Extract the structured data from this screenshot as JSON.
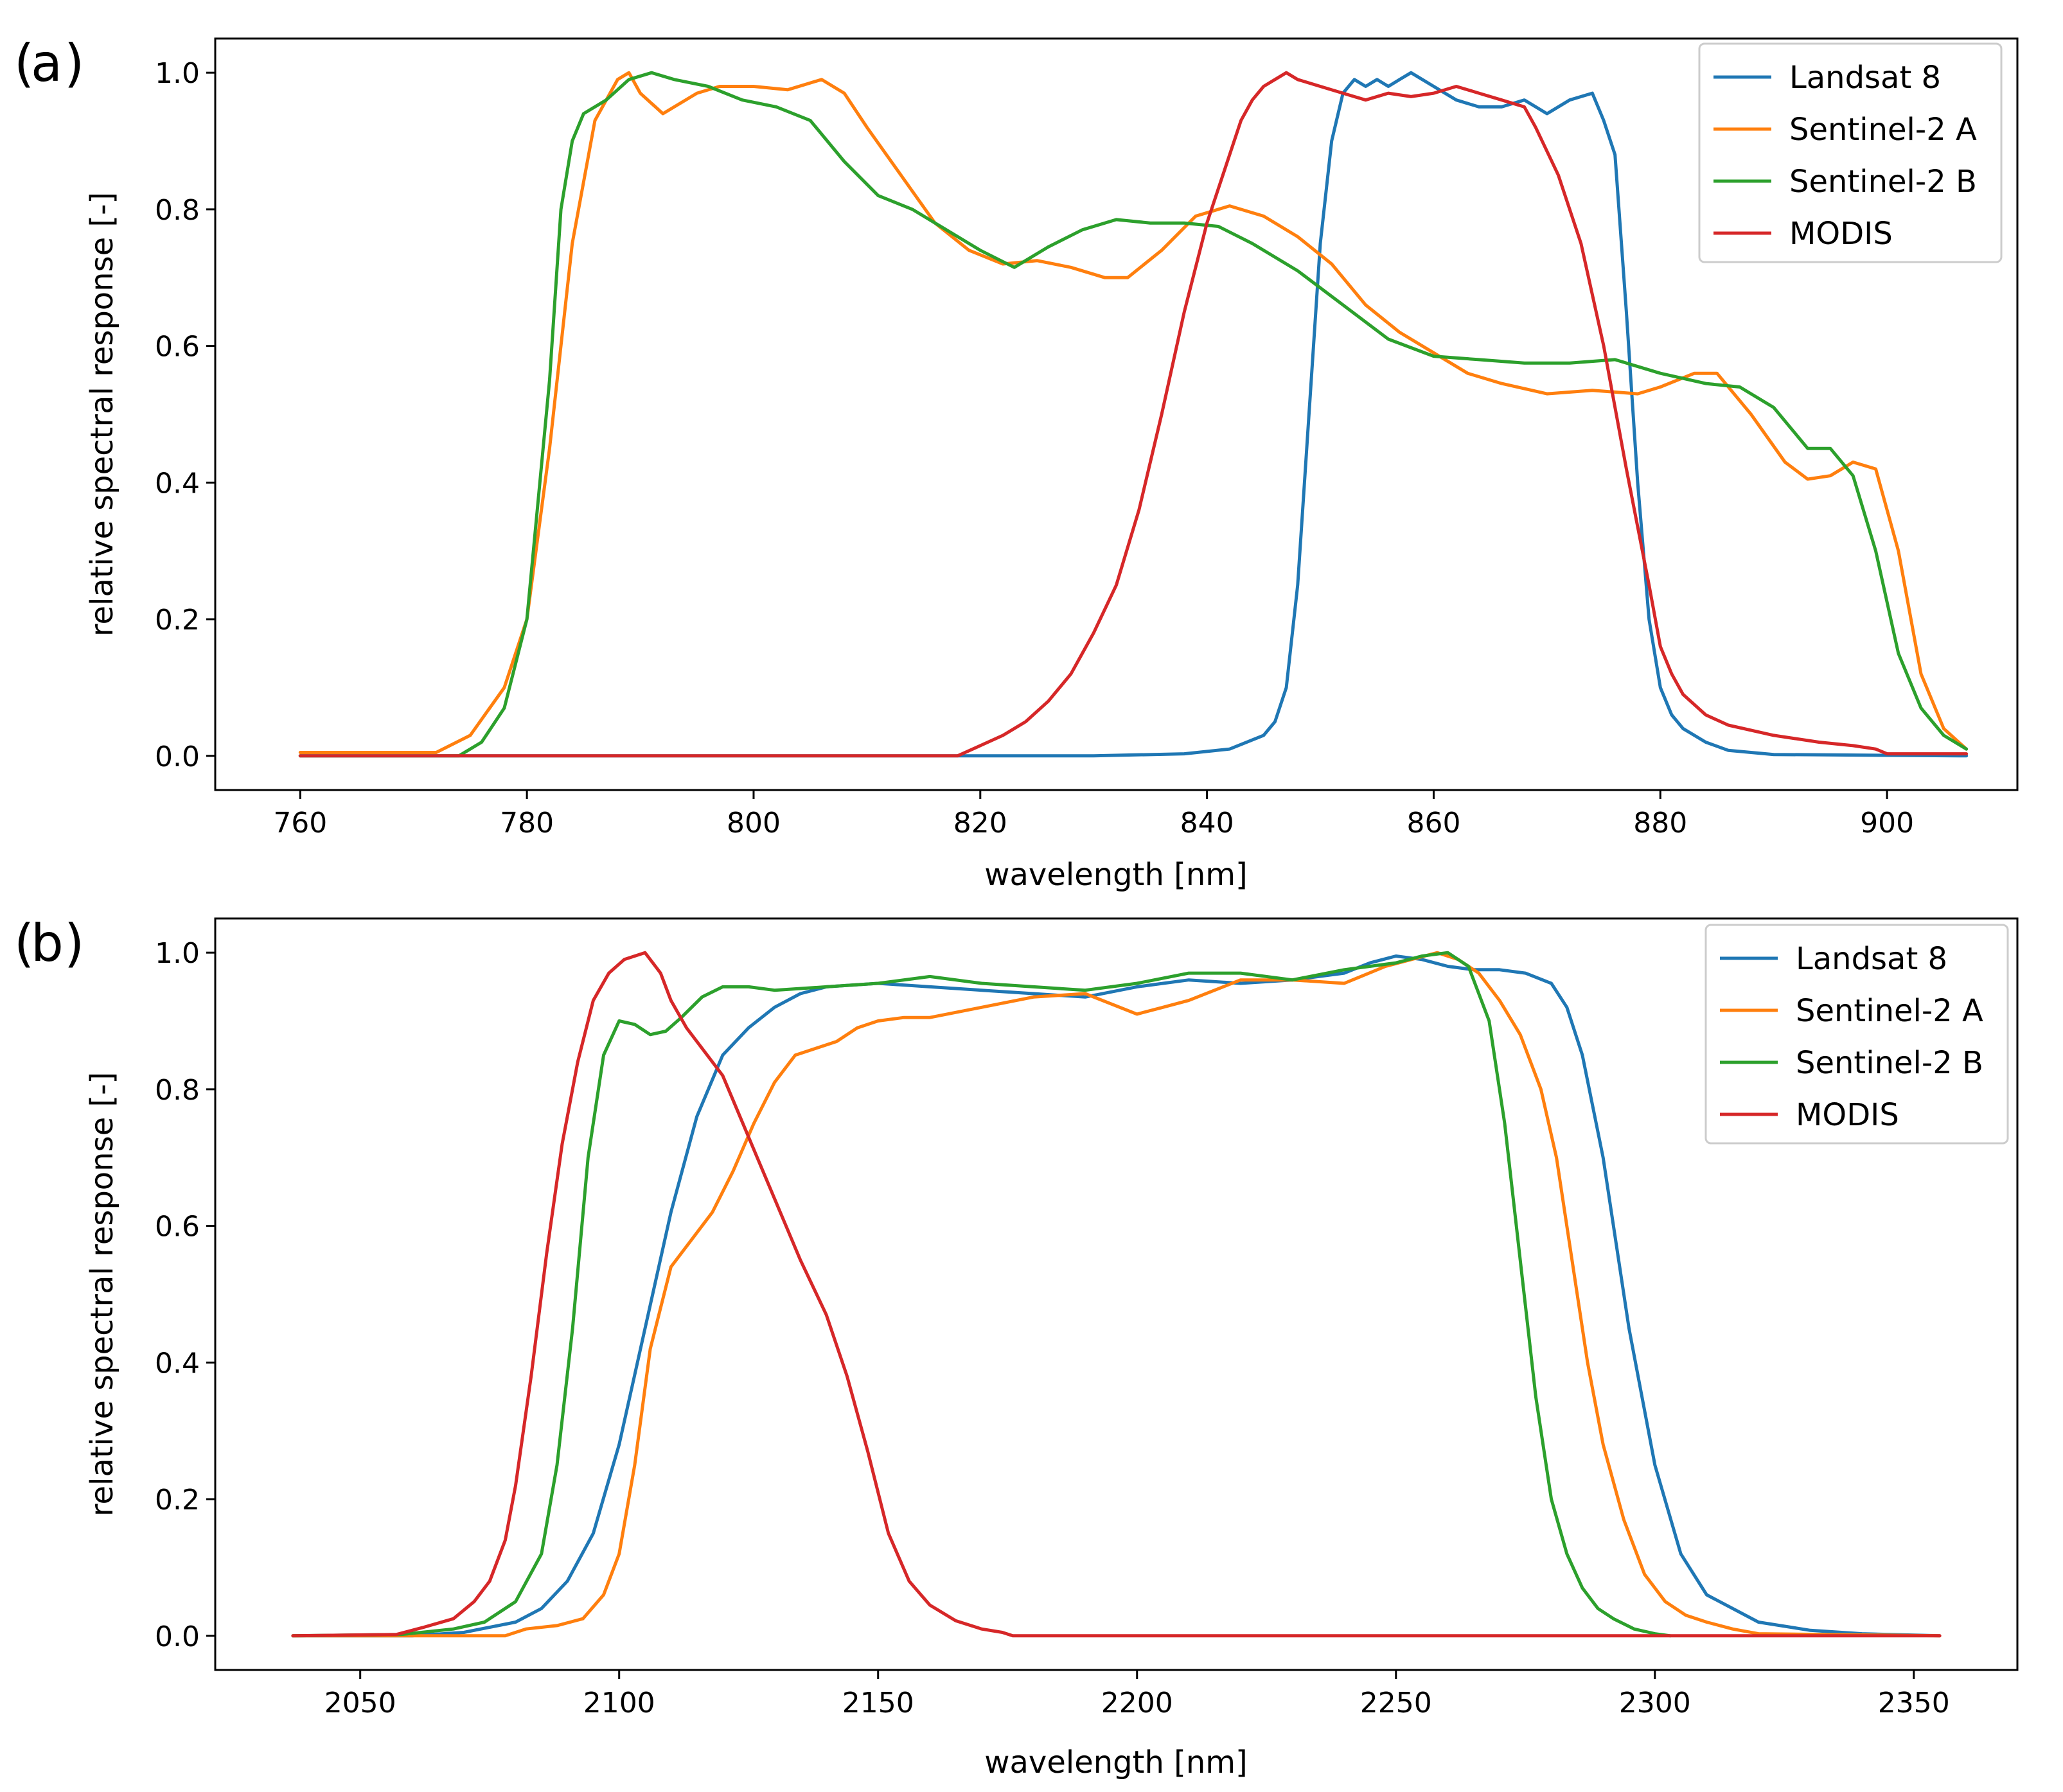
{
  "chart_data": [
    {
      "type": "line",
      "panel_label": "a",
      "xlabel": "wavelength [nm]",
      "ylabel": "relative spectral response [-]",
      "xlim": [
        752.5,
        911.5
      ],
      "ylim": [
        -0.05,
        1.05
      ],
      "xticks": [
        760,
        780,
        800,
        820,
        840,
        860,
        880,
        900
      ],
      "xtick_labels": [
        "760",
        "780",
        "800",
        "820",
        "840",
        "860",
        "880",
        "900"
      ],
      "yticks": [
        0.0,
        0.2,
        0.4,
        0.6,
        0.8,
        1.0
      ],
      "ytick_labels": [
        "0.0",
        "0.2",
        "0.4",
        "0.6",
        "0.8",
        "1.0"
      ],
      "legend_position": "top-right",
      "series": [
        {
          "name": "Landsat 8",
          "color": "#1f77b4",
          "x": [
            760,
            800,
            830,
            838,
            842,
            845,
            846,
            847,
            848,
            849,
            850,
            851,
            852,
            853,
            854,
            855,
            856,
            857,
            858,
            859,
            860,
            862,
            864,
            866,
            868,
            870,
            872,
            874,
            875,
            876,
            877,
            878,
            879,
            880,
            881,
            882,
            884,
            886,
            890,
            907
          ],
          "y": [
            0,
            0,
            0,
            0.003,
            0.01,
            0.03,
            0.05,
            0.1,
            0.25,
            0.5,
            0.75,
            0.9,
            0.97,
            0.99,
            0.98,
            0.99,
            0.98,
            0.99,
            1.0,
            0.99,
            0.98,
            0.96,
            0.95,
            0.95,
            0.96,
            0.94,
            0.96,
            0.97,
            0.93,
            0.88,
            0.65,
            0.4,
            0.2,
            0.1,
            0.06,
            0.04,
            0.02,
            0.008,
            0.002,
            0
          ]
        },
        {
          "name": "Sentinel-2 A",
          "color": "#ff7f0e",
          "x": [
            760,
            772,
            775,
            778,
            780,
            782,
            784,
            786,
            788,
            789,
            790,
            792,
            795,
            797,
            800,
            803,
            806,
            808,
            810,
            813,
            816,
            819,
            822,
            825,
            828,
            831,
            833,
            836,
            839,
            842,
            845,
            848,
            851,
            854,
            857,
            860,
            863,
            866,
            870,
            874,
            878,
            880,
            883,
            885,
            888,
            891,
            893,
            895,
            897,
            899,
            901,
            903,
            905,
            907
          ],
          "y": [
            0.005,
            0.005,
            0.03,
            0.1,
            0.2,
            0.45,
            0.75,
            0.93,
            0.99,
            1.0,
            0.97,
            0.94,
            0.97,
            0.98,
            0.98,
            0.975,
            0.99,
            0.97,
            0.92,
            0.85,
            0.78,
            0.74,
            0.72,
            0.725,
            0.715,
            0.7,
            0.7,
            0.74,
            0.79,
            0.805,
            0.79,
            0.76,
            0.72,
            0.66,
            0.62,
            0.59,
            0.56,
            0.545,
            0.53,
            0.535,
            0.53,
            0.54,
            0.56,
            0.56,
            0.5,
            0.43,
            0.405,
            0.41,
            0.43,
            0.42,
            0.3,
            0.12,
            0.04,
            0.01
          ]
        },
        {
          "name": "Sentinel-2 B",
          "color": "#2ca02c",
          "x": [
            760,
            774,
            776,
            778,
            780,
            782,
            783,
            784,
            785,
            787,
            789,
            791,
            793,
            796,
            799,
            802,
            805,
            808,
            811,
            814,
            817,
            820,
            823,
            826,
            829,
            832,
            835,
            838,
            841,
            844,
            848,
            852,
            856,
            860,
            864,
            868,
            872,
            876,
            880,
            884,
            887,
            890,
            893,
            895,
            897,
            899,
            901,
            903,
            905,
            907
          ],
          "y": [
            0,
            0,
            0.02,
            0.07,
            0.2,
            0.55,
            0.8,
            0.9,
            0.94,
            0.96,
            0.99,
            1.0,
            0.99,
            0.98,
            0.96,
            0.95,
            0.93,
            0.87,
            0.82,
            0.8,
            0.77,
            0.74,
            0.715,
            0.745,
            0.77,
            0.785,
            0.78,
            0.78,
            0.775,
            0.75,
            0.71,
            0.66,
            0.61,
            0.585,
            0.58,
            0.575,
            0.575,
            0.58,
            0.56,
            0.545,
            0.54,
            0.51,
            0.45,
            0.45,
            0.41,
            0.3,
            0.15,
            0.07,
            0.03,
            0.01
          ]
        },
        {
          "name": "MODIS",
          "color": "#d62728",
          "x": [
            760,
            818,
            820,
            822,
            824,
            826,
            828,
            830,
            832,
            834,
            836,
            838,
            840,
            842,
            843,
            844,
            845,
            846,
            847,
            848,
            850,
            852,
            854,
            856,
            858,
            860,
            862,
            864,
            866,
            868,
            869,
            871,
            873,
            875,
            877,
            879,
            880,
            881,
            882,
            884,
            886,
            890,
            894,
            897,
            899,
            900,
            907
          ],
          "y": [
            0,
            0,
            0.015,
            0.03,
            0.05,
            0.08,
            0.12,
            0.18,
            0.25,
            0.36,
            0.5,
            0.65,
            0.78,
            0.88,
            0.93,
            0.96,
            0.98,
            0.99,
            1.0,
            0.99,
            0.98,
            0.97,
            0.96,
            0.97,
            0.965,
            0.97,
            0.98,
            0.97,
            0.96,
            0.95,
            0.92,
            0.85,
            0.75,
            0.6,
            0.42,
            0.25,
            0.16,
            0.12,
            0.09,
            0.06,
            0.045,
            0.03,
            0.02,
            0.015,
            0.01,
            0.003,
            0.003
          ]
        }
      ]
    },
    {
      "type": "line",
      "panel_label": "b",
      "xlabel": "wavelength [nm]",
      "ylabel": "relative spectral response [-]",
      "xlim": [
        2022,
        2370
      ],
      "ylim": [
        -0.05,
        1.05
      ],
      "xticks": [
        2050,
        2100,
        2150,
        2200,
        2250,
        2300,
        2350
      ],
      "xtick_labels": [
        "2050",
        "2100",
        "2150",
        "2200",
        "2250",
        "2300",
        "2350"
      ],
      "yticks": [
        0.0,
        0.2,
        0.4,
        0.6,
        0.8,
        1.0
      ],
      "ytick_labels": [
        "0.0",
        "0.2",
        "0.4",
        "0.6",
        "0.8",
        "1.0"
      ],
      "legend_position": "top-right",
      "series": [
        {
          "name": "Landsat 8",
          "color": "#1f77b4",
          "x": [
            2037,
            2060,
            2070,
            2080,
            2085,
            2090,
            2095,
            2100,
            2105,
            2110,
            2115,
            2120,
            2125,
            2130,
            2135,
            2140,
            2150,
            2160,
            2170,
            2180,
            2190,
            2200,
            2210,
            2220,
            2230,
            2240,
            2245,
            2250,
            2255,
            2260,
            2265,
            2270,
            2275,
            2280,
            2283,
            2286,
            2290,
            2295,
            2300,
            2305,
            2310,
            2320,
            2330,
            2340,
            2355
          ],
          "y": [
            0,
            0,
            0.005,
            0.02,
            0.04,
            0.08,
            0.15,
            0.28,
            0.45,
            0.62,
            0.76,
            0.85,
            0.89,
            0.92,
            0.94,
            0.95,
            0.955,
            0.95,
            0.945,
            0.94,
            0.935,
            0.95,
            0.96,
            0.955,
            0.96,
            0.97,
            0.985,
            0.995,
            0.99,
            0.98,
            0.975,
            0.975,
            0.97,
            0.955,
            0.92,
            0.85,
            0.7,
            0.45,
            0.25,
            0.12,
            0.06,
            0.02,
            0.008,
            0.003,
            0
          ]
        },
        {
          "name": "Sentinel-2 A",
          "color": "#ff7f0e",
          "x": [
            2037,
            2078,
            2082,
            2088,
            2093,
            2097,
            2100,
            2103,
            2106,
            2110,
            2114,
            2118,
            2122,
            2126,
            2130,
            2134,
            2138,
            2142,
            2146,
            2150,
            2155,
            2160,
            2170,
            2180,
            2190,
            2200,
            2205,
            2210,
            2220,
            2230,
            2240,
            2248,
            2253,
            2258,
            2262,
            2266,
            2270,
            2274,
            2278,
            2281,
            2284,
            2287,
            2290,
            2294,
            2298,
            2302,
            2306,
            2310,
            2315,
            2320,
            2355
          ],
          "y": [
            0,
            0,
            0.01,
            0.015,
            0.025,
            0.06,
            0.12,
            0.25,
            0.42,
            0.54,
            0.58,
            0.62,
            0.68,
            0.75,
            0.81,
            0.85,
            0.86,
            0.87,
            0.89,
            0.9,
            0.905,
            0.905,
            0.92,
            0.935,
            0.94,
            0.91,
            0.92,
            0.93,
            0.96,
            0.96,
            0.955,
            0.98,
            0.99,
            1.0,
            0.99,
            0.97,
            0.93,
            0.88,
            0.8,
            0.7,
            0.55,
            0.4,
            0.28,
            0.17,
            0.09,
            0.05,
            0.03,
            0.02,
            0.01,
            0.003,
            0
          ]
        },
        {
          "name": "Sentinel-2 B",
          "color": "#2ca02c",
          "x": [
            2037,
            2058,
            2068,
            2074,
            2080,
            2085,
            2088,
            2091,
            2094,
            2097,
            2100,
            2103,
            2106,
            2109,
            2112,
            2116,
            2120,
            2125,
            2130,
            2140,
            2150,
            2160,
            2170,
            2180,
            2190,
            2200,
            2210,
            2220,
            2230,
            2240,
            2250,
            2255,
            2260,
            2264,
            2268,
            2271,
            2274,
            2277,
            2280,
            2283,
            2286,
            2289,
            2292,
            2296,
            2300,
            2303
          ],
          "y": [
            0,
            0.002,
            0.01,
            0.02,
            0.05,
            0.12,
            0.25,
            0.45,
            0.7,
            0.85,
            0.9,
            0.895,
            0.88,
            0.885,
            0.905,
            0.935,
            0.95,
            0.95,
            0.945,
            0.95,
            0.955,
            0.965,
            0.955,
            0.95,
            0.945,
            0.955,
            0.97,
            0.97,
            0.96,
            0.975,
            0.985,
            0.995,
            1.0,
            0.98,
            0.9,
            0.75,
            0.55,
            0.35,
            0.2,
            0.12,
            0.07,
            0.04,
            0.025,
            0.01,
            0.003,
            0
          ]
        },
        {
          "name": "MODIS",
          "color": "#d62728",
          "x": [
            2037,
            2057,
            2062,
            2068,
            2072,
            2075,
            2078,
            2080,
            2083,
            2086,
            2089,
            2092,
            2095,
            2098,
            2101,
            2105,
            2108,
            2110,
            2113,
            2116,
            2120,
            2125,
            2130,
            2135,
            2140,
            2144,
            2148,
            2152,
            2156,
            2160,
            2165,
            2170,
            2174,
            2176,
            2200,
            2355
          ],
          "y": [
            0,
            0.002,
            0.012,
            0.025,
            0.05,
            0.08,
            0.14,
            0.22,
            0.38,
            0.56,
            0.72,
            0.84,
            0.93,
            0.97,
            0.99,
            1.0,
            0.97,
            0.93,
            0.89,
            0.86,
            0.82,
            0.73,
            0.64,
            0.55,
            0.47,
            0.38,
            0.27,
            0.15,
            0.08,
            0.045,
            0.022,
            0.01,
            0.005,
            0,
            0,
            0
          ]
        }
      ]
    }
  ]
}
